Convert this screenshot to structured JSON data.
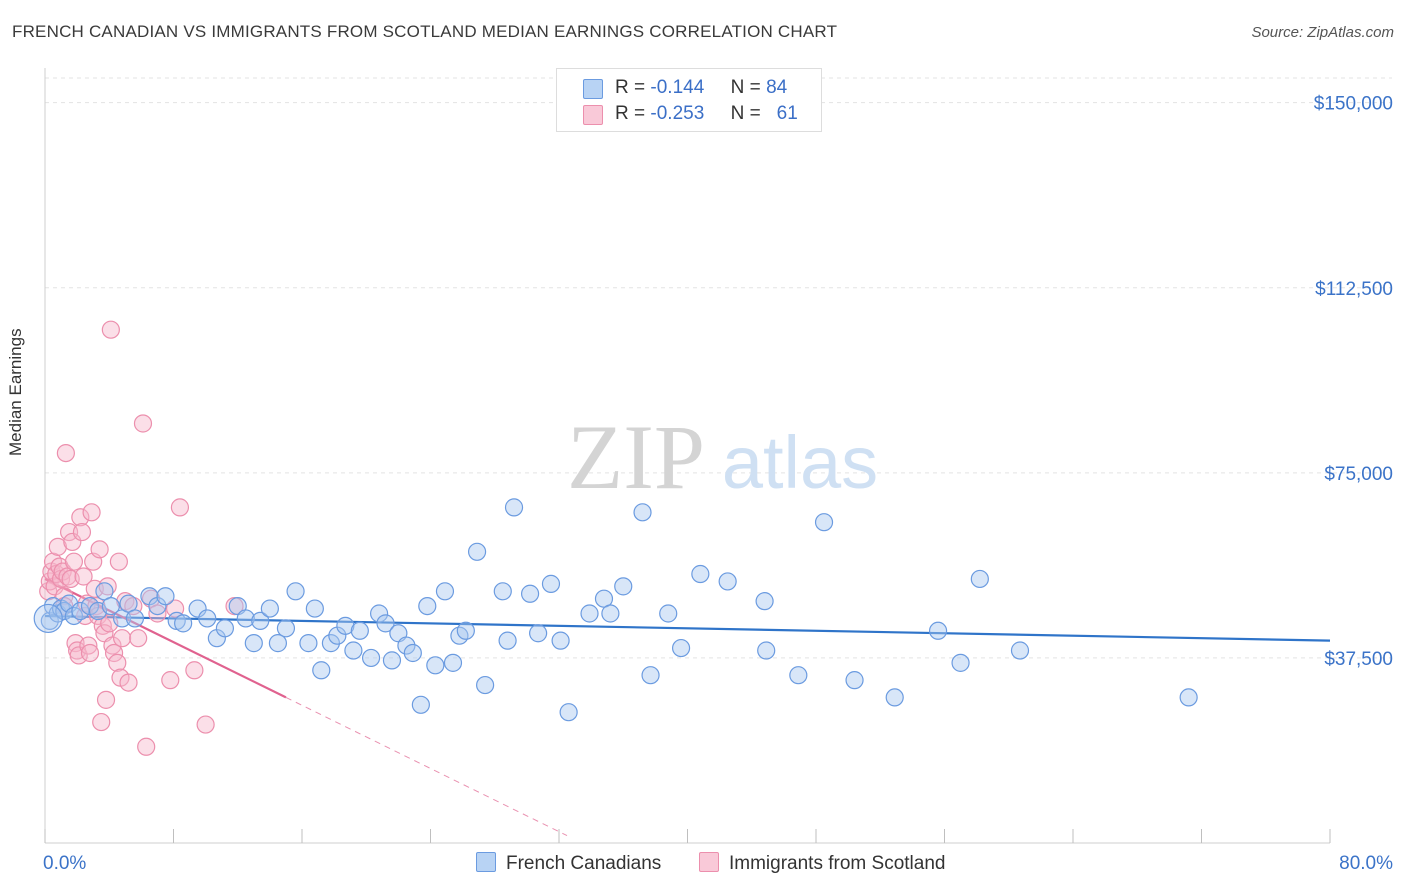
{
  "title": "FRENCH CANADIAN VS IMMIGRANTS FROM SCOTLAND MEDIAN EARNINGS CORRELATION CHART",
  "source": "Source: ZipAtlas.com",
  "watermark": {
    "zip": "ZIP",
    "atlas": "atlas"
  },
  "legend": {
    "rows": [
      {
        "r_label": "R =",
        "r_value": "-0.144",
        "n_label": "N =",
        "n_value": "84"
      },
      {
        "r_label": "R =",
        "r_value": "-0.253",
        "n_label": "N =",
        "n_value": "61"
      }
    ]
  },
  "colors": {
    "blue_fill": "#a9c8f0",
    "blue_stroke": "#6b9be0",
    "blue_line": "#2f74c9",
    "pink_fill": "#f6b8cc",
    "pink_stroke": "#ec8fad",
    "pink_line": "#e0628f",
    "grid": "#e3e3e3",
    "tick_label": "#3b73c8"
  },
  "chart_data": {
    "type": "scatter",
    "title": "FRENCH CANADIAN VS IMMIGRANTS FROM SCOTLAND MEDIAN EARNINGS CORRELATION CHART",
    "xlabel": "",
    "ylabel": "Median Earnings",
    "xlim": [
      0,
      80
    ],
    "ylim": [
      0,
      155000
    ],
    "x_tick_labels": [
      "0.0%",
      "80.0%"
    ],
    "y_ticks": [
      37500,
      75000,
      112500,
      150000
    ],
    "y_tick_labels": [
      "$37,500",
      "$75,000",
      "$112,500",
      "$150,000"
    ],
    "series": [
      {
        "name": "French Canadians",
        "r": -0.144,
        "n": 84,
        "trend": {
          "x": [
            0,
            80
          ],
          "y": [
            46000,
            41000
          ]
        },
        "points": [
          [
            0.3,
            45000
          ],
          [
            0.5,
            48000
          ],
          [
            0.8,
            46500
          ],
          [
            1.0,
            47500
          ],
          [
            1.2,
            47000
          ],
          [
            1.5,
            48500
          ],
          [
            1.8,
            46000
          ],
          [
            2.2,
            47000
          ],
          [
            2.8,
            48000
          ],
          [
            3.3,
            47000
          ],
          [
            3.7,
            51000
          ],
          [
            4.1,
            48000
          ],
          [
            4.8,
            45500
          ],
          [
            5.2,
            48500
          ],
          [
            5.6,
            45500
          ],
          [
            6.5,
            50000
          ],
          [
            7.0,
            48000
          ],
          [
            7.5,
            50000
          ],
          [
            8.2,
            45000
          ],
          [
            8.6,
            44500
          ],
          [
            9.5,
            47500
          ],
          [
            10.1,
            45500
          ],
          [
            10.7,
            41500
          ],
          [
            11.2,
            43500
          ],
          [
            12.0,
            48000
          ],
          [
            12.5,
            45500
          ],
          [
            13.0,
            40500
          ],
          [
            13.4,
            45000
          ],
          [
            14.0,
            47500
          ],
          [
            14.5,
            40500
          ],
          [
            15.0,
            43500
          ],
          [
            15.6,
            51000
          ],
          [
            16.4,
            40500
          ],
          [
            16.8,
            47500
          ],
          [
            17.2,
            35000
          ],
          [
            17.8,
            40500
          ],
          [
            18.2,
            42000
          ],
          [
            18.7,
            44000
          ],
          [
            19.2,
            39000
          ],
          [
            19.6,
            43000
          ],
          [
            20.3,
            37500
          ],
          [
            20.8,
            46500
          ],
          [
            21.2,
            44500
          ],
          [
            21.6,
            37000
          ],
          [
            22.0,
            42500
          ],
          [
            22.5,
            40000
          ],
          [
            22.9,
            38500
          ],
          [
            23.4,
            28000
          ],
          [
            23.8,
            48000
          ],
          [
            24.3,
            36000
          ],
          [
            24.9,
            51000
          ],
          [
            25.4,
            36500
          ],
          [
            25.8,
            42000
          ],
          [
            26.2,
            43000
          ],
          [
            26.9,
            59000
          ],
          [
            27.4,
            32000
          ],
          [
            28.5,
            51000
          ],
          [
            28.8,
            41000
          ],
          [
            29.2,
            68000
          ],
          [
            30.2,
            50500
          ],
          [
            30.7,
            42500
          ],
          [
            31.5,
            52500
          ],
          [
            32.1,
            41000
          ],
          [
            32.6,
            26500
          ],
          [
            33.9,
            46500
          ],
          [
            34.8,
            49500
          ],
          [
            35.2,
            46500
          ],
          [
            36.0,
            52000
          ],
          [
            37.2,
            67000
          ],
          [
            37.7,
            34000
          ],
          [
            38.8,
            46500
          ],
          [
            39.6,
            39500
          ],
          [
            40.8,
            54500
          ],
          [
            42.5,
            53000
          ],
          [
            44.8,
            49000
          ],
          [
            44.9,
            39000
          ],
          [
            46.9,
            34000
          ],
          [
            48.5,
            65000
          ],
          [
            50.4,
            33000
          ],
          [
            52.9,
            29500
          ],
          [
            55.6,
            43000
          ],
          [
            57.0,
            36500
          ],
          [
            58.2,
            53500
          ],
          [
            60.7,
            39000
          ],
          [
            71.2,
            29500
          ]
        ]
      },
      {
        "name": "Immigrants from Scotland",
        "r": -0.253,
        "n": 61,
        "trend": {
          "x": [
            0,
            15
          ],
          "y": [
            53500,
            29500
          ]
        },
        "trend_dashed": {
          "x": [
            15,
            32.5
          ],
          "y": [
            29500,
            1500
          ]
        },
        "points": [
          [
            0.2,
            51000
          ],
          [
            0.3,
            53000
          ],
          [
            0.4,
            55000
          ],
          [
            0.5,
            57000
          ],
          [
            0.6,
            52000
          ],
          [
            0.7,
            54500
          ],
          [
            0.8,
            60000
          ],
          [
            0.9,
            56000
          ],
          [
            1.0,
            53500
          ],
          [
            1.1,
            55000
          ],
          [
            1.2,
            50000
          ],
          [
            1.2,
            48000
          ],
          [
            1.3,
            79000
          ],
          [
            1.4,
            54000
          ],
          [
            1.5,
            63000
          ],
          [
            1.6,
            53500
          ],
          [
            1.7,
            61000
          ],
          [
            1.8,
            57000
          ],
          [
            1.9,
            40500
          ],
          [
            2.0,
            39000
          ],
          [
            2.1,
            38000
          ],
          [
            2.2,
            66000
          ],
          [
            2.3,
            63000
          ],
          [
            2.4,
            54000
          ],
          [
            2.5,
            46000
          ],
          [
            2.6,
            48500
          ],
          [
            2.7,
            40000
          ],
          [
            2.8,
            38500
          ],
          [
            2.9,
            67000
          ],
          [
            3.0,
            57000
          ],
          [
            3.1,
            51500
          ],
          [
            3.2,
            48000
          ],
          [
            3.3,
            46000
          ],
          [
            3.4,
            59500
          ],
          [
            3.5,
            24500
          ],
          [
            3.6,
            44000
          ],
          [
            3.7,
            42500
          ],
          [
            3.8,
            29000
          ],
          [
            3.9,
            52000
          ],
          [
            4.0,
            44500
          ],
          [
            4.1,
            104000
          ],
          [
            4.2,
            40000
          ],
          [
            4.3,
            38500
          ],
          [
            4.5,
            36500
          ],
          [
            4.6,
            57000
          ],
          [
            4.7,
            33500
          ],
          [
            4.8,
            41500
          ],
          [
            5.0,
            49000
          ],
          [
            5.2,
            32500
          ],
          [
            5.5,
            48000
          ],
          [
            5.8,
            41500
          ],
          [
            6.1,
            85000
          ],
          [
            6.3,
            19500
          ],
          [
            6.6,
            49500
          ],
          [
            7.0,
            46500
          ],
          [
            7.8,
            33000
          ],
          [
            8.1,
            47500
          ],
          [
            8.4,
            68000
          ],
          [
            9.3,
            35000
          ],
          [
            10.0,
            24000
          ],
          [
            11.8,
            48000
          ]
        ]
      }
    ]
  },
  "bottom_legend": [
    "French Canadians",
    "Immigrants from Scotland"
  ]
}
